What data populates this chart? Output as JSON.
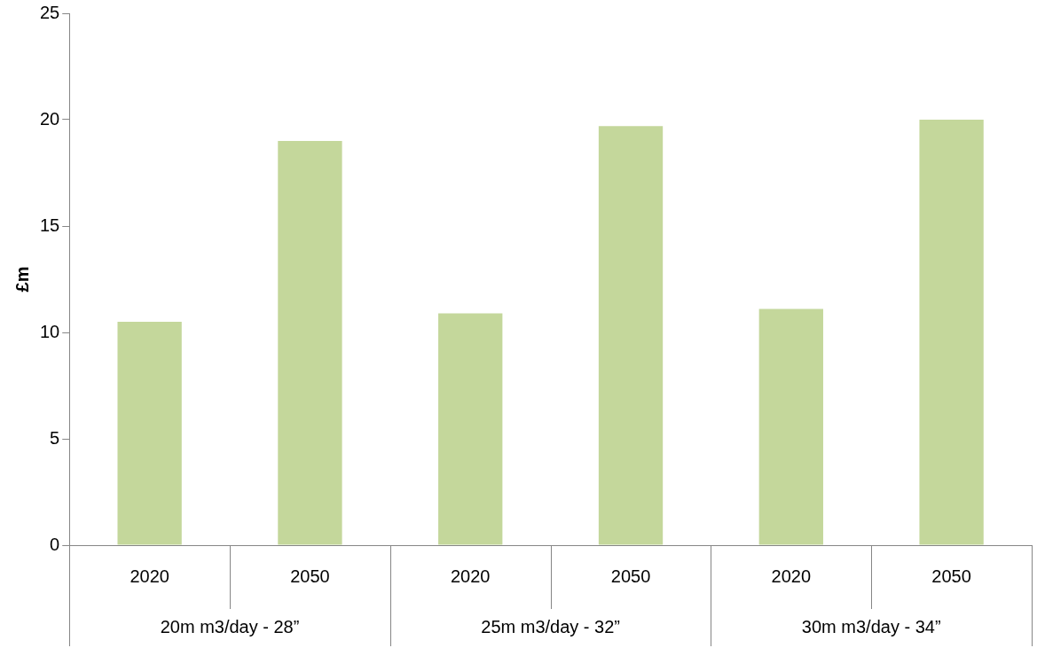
{
  "chart_data": {
    "type": "bar",
    "ylabel": "£m",
    "categories": [
      "2020",
      "2050",
      "2020",
      "2050",
      "2020",
      "2050"
    ],
    "values": [
      10.5,
      19.0,
      10.9,
      19.7,
      11.1,
      20.0
    ],
    "color": "#c4d79b",
    "ylim": [
      0,
      25
    ],
    "yticks": [
      0,
      5,
      10,
      15,
      20,
      25
    ],
    "grid": false,
    "legend": false,
    "annotations": [
      "20m m3/day - 28”",
      "25m m3/day - 32”",
      "30m m3/day - 34”"
    ]
  }
}
